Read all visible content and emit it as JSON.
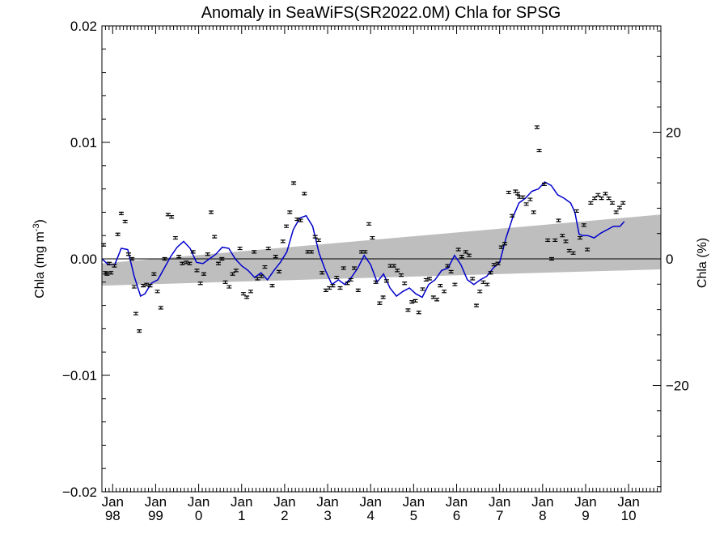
{
  "chart_data": {
    "type": "scatter",
    "title": "Anomaly in SeaWiFS(SR2022.0M) Chla for SPSG",
    "ylabel_left": "Chla (mg m",
    "ylabel_left_sup": "-3",
    "ylabel_left_end": ")",
    "ylabel_right": "Chla (%)",
    "x_range": [
      1997.75,
      2010.75
    ],
    "y_range": [
      -0.02,
      0.02
    ],
    "y_right_range": [
      -36.8,
      36.8
    ],
    "grid": false,
    "y_left_ticks": [
      {
        "value": 0.02,
        "label": "0.02"
      },
      {
        "value": 0.01,
        "label": "0.01"
      },
      {
        "value": 0.0,
        "label": "0.00"
      },
      {
        "value": -0.01,
        "label": "−0.01"
      },
      {
        "value": -0.02,
        "label": "−0.02"
      }
    ],
    "y_right_ticks": [
      {
        "value": 20,
        "label": "20"
      },
      {
        "value": 0,
        "label": "0"
      },
      {
        "value": -20,
        "label": "−20"
      }
    ],
    "x_ticks": [
      {
        "value": 1998,
        "top": "Jan",
        "bottom": "98"
      },
      {
        "value": 1999,
        "top": "Jan",
        "bottom": "99"
      },
      {
        "value": 2000,
        "top": "Jan",
        "bottom": "0"
      },
      {
        "value": 2001,
        "top": "Jan",
        "bottom": "1"
      },
      {
        "value": 2002,
        "top": "Jan",
        "bottom": "2"
      },
      {
        "value": 2003,
        "top": "Jan",
        "bottom": "3"
      },
      {
        "value": 2004,
        "top": "Jan",
        "bottom": "4"
      },
      {
        "value": 2005,
        "top": "Jan",
        "bottom": "5"
      },
      {
        "value": 2006,
        "top": "Jan",
        "bottom": "6"
      },
      {
        "value": 2007,
        "top": "Jan",
        "bottom": "7"
      },
      {
        "value": 2008,
        "top": "Jan",
        "bottom": "8"
      },
      {
        "value": 2009,
        "top": "Jan",
        "bottom": "9"
      },
      {
        "value": 2010,
        "top": "Jan",
        "bottom": "10"
      }
    ],
    "trend_band": {
      "color": "#bebebe",
      "x": [
        1997.75,
        2010.75
      ],
      "upper": [
        -0.0004,
        0.0038
      ],
      "lower": [
        -0.0023,
        -0.0009
      ]
    },
    "smoothed_series": {
      "color": "#0000cc",
      "points": [
        [
          1997.75,
          0.0
        ],
        [
          1997.9,
          -0.0005
        ],
        [
          1998.05,
          -0.0005
        ],
        [
          1998.2,
          0.0009
        ],
        [
          1998.35,
          0.0008
        ],
        [
          1998.5,
          -0.0015
        ],
        [
          1998.65,
          -0.0032
        ],
        [
          1998.75,
          -0.003
        ],
        [
          1998.9,
          -0.0021
        ],
        [
          1999.05,
          -0.0018
        ],
        [
          1999.2,
          -0.0008
        ],
        [
          1999.35,
          0.0002
        ],
        [
          1999.5,
          0.001
        ],
        [
          1999.65,
          0.0015
        ],
        [
          1999.8,
          0.0009
        ],
        [
          1999.95,
          -0.0003
        ],
        [
          2000.1,
          -0.0004
        ],
        [
          2000.25,
          0.0
        ],
        [
          2000.4,
          0.0004
        ],
        [
          2000.55,
          0.001
        ],
        [
          2000.7,
          0.0009
        ],
        [
          2000.85,
          0.0
        ],
        [
          2001.0,
          -0.0006
        ],
        [
          2001.15,
          -0.001
        ],
        [
          2001.3,
          -0.0016
        ],
        [
          2001.45,
          -0.0012
        ],
        [
          2001.6,
          -0.0018
        ],
        [
          2001.75,
          -0.001
        ],
        [
          2001.9,
          -0.0003
        ],
        [
          2002.05,
          0.0006
        ],
        [
          2002.2,
          0.0025
        ],
        [
          2002.35,
          0.0035
        ],
        [
          2002.5,
          0.0037
        ],
        [
          2002.65,
          0.0028
        ],
        [
          2002.8,
          0.0005
        ],
        [
          2002.95,
          -0.001
        ],
        [
          2003.1,
          -0.0022
        ],
        [
          2003.25,
          -0.0018
        ],
        [
          2003.4,
          -0.0022
        ],
        [
          2003.55,
          -0.0016
        ],
        [
          2003.7,
          -0.0008
        ],
        [
          2003.85,
          0.0003
        ],
        [
          2004.0,
          -0.0005
        ],
        [
          2004.15,
          -0.002
        ],
        [
          2004.3,
          -0.0013
        ],
        [
          2004.45,
          -0.0025
        ],
        [
          2004.6,
          -0.0032
        ],
        [
          2004.75,
          -0.0028
        ],
        [
          2004.9,
          -0.0025
        ],
        [
          2005.05,
          -0.003
        ],
        [
          2005.2,
          -0.0033
        ],
        [
          2005.35,
          -0.0022
        ],
        [
          2005.5,
          -0.0018
        ],
        [
          2005.65,
          -0.001
        ],
        [
          2005.8,
          -0.0008
        ],
        [
          2005.95,
          0.0003
        ],
        [
          2006.1,
          -0.0005
        ],
        [
          2006.25,
          -0.0018
        ],
        [
          2006.4,
          -0.0022
        ],
        [
          2006.55,
          -0.0018
        ],
        [
          2006.7,
          -0.0015
        ],
        [
          2006.85,
          -0.0008
        ],
        [
          2007.0,
          -0.0003
        ],
        [
          2007.15,
          0.0018
        ],
        [
          2007.3,
          0.0035
        ],
        [
          2007.45,
          0.0048
        ],
        [
          2007.6,
          0.0052
        ],
        [
          2007.75,
          0.0058
        ],
        [
          2007.9,
          0.006
        ],
        [
          2008.05,
          0.0066
        ],
        [
          2008.2,
          0.0063
        ],
        [
          2008.35,
          0.0055
        ],
        [
          2008.5,
          0.0052
        ],
        [
          2008.65,
          0.0048
        ],
        [
          2008.75,
          0.004
        ],
        [
          2008.85,
          0.0021
        ],
        [
          2008.95,
          0.002
        ],
        [
          2009.05,
          0.002
        ],
        [
          2009.2,
          0.0018
        ],
        [
          2009.35,
          0.0022
        ],
        [
          2009.5,
          0.0025
        ],
        [
          2009.65,
          0.0028
        ],
        [
          2009.8,
          0.0028
        ],
        [
          2009.9,
          0.0032
        ]
      ]
    },
    "monthly_points": [
      [
        1997.79,
        0.0012
      ],
      [
        1997.83,
        -0.0012
      ],
      [
        1997.87,
        -0.0013
      ],
      [
        1997.92,
        -0.0004
      ],
      [
        1997.96,
        -0.0012
      ],
      [
        1998.04,
        -0.0006
      ],
      [
        1998.12,
        0.0021
      ],
      [
        1998.2,
        0.0039
      ],
      [
        1998.29,
        0.0032
      ],
      [
        1998.37,
        0.0004
      ],
      [
        1998.45,
        0.0
      ],
      [
        1998.5,
        -0.0024
      ],
      [
        1998.54,
        -0.0047
      ],
      [
        1998.62,
        -0.0062
      ],
      [
        1998.71,
        -0.0023
      ],
      [
        1998.79,
        -0.0022
      ],
      [
        1998.87,
        -0.0023
      ],
      [
        1998.96,
        -0.0013
      ],
      [
        1999.04,
        -0.0028
      ],
      [
        1999.12,
        -0.0042
      ],
      [
        1999.21,
        0.0
      ],
      [
        1999.29,
        0.0038
      ],
      [
        1999.37,
        0.0036
      ],
      [
        1999.46,
        0.0018
      ],
      [
        1999.54,
        0.0002
      ],
      [
        1999.62,
        -0.0004
      ],
      [
        1999.71,
        -0.0003
      ],
      [
        1999.79,
        -0.0004
      ],
      [
        1999.87,
        0.0006
      ],
      [
        1999.96,
        -0.001
      ],
      [
        2000.04,
        -0.0021
      ],
      [
        2000.12,
        -0.0013
      ],
      [
        2000.21,
        0.0004
      ],
      [
        2000.29,
        0.004
      ],
      [
        2000.37,
        0.0019
      ],
      [
        2000.46,
        -0.0004
      ],
      [
        2000.54,
        0.0
      ],
      [
        2000.62,
        -0.002
      ],
      [
        2000.71,
        -0.0024
      ],
      [
        2000.79,
        -0.0013
      ],
      [
        2000.87,
        -0.001
      ],
      [
        2000.96,
        0.0009
      ],
      [
        2001.04,
        -0.003
      ],
      [
        2001.12,
        -0.0033
      ],
      [
        2001.21,
        -0.0028
      ],
      [
        2001.29,
        0.0006
      ],
      [
        2001.37,
        -0.0017
      ],
      [
        2001.46,
        -0.0015
      ],
      [
        2001.54,
        -0.0007
      ],
      [
        2001.62,
        0.0009
      ],
      [
        2001.71,
        -0.0023
      ],
      [
        2001.79,
        0.0002
      ],
      [
        2001.87,
        -0.0011
      ],
      [
        2001.96,
        0.0015
      ],
      [
        2002.04,
        0.0028
      ],
      [
        2002.12,
        0.004
      ],
      [
        2002.21,
        0.0065
      ],
      [
        2002.29,
        0.0034
      ],
      [
        2002.37,
        0.0033
      ],
      [
        2002.46,
        0.0056
      ],
      [
        2002.54,
        0.0006
      ],
      [
        2002.62,
        0.0006
      ],
      [
        2002.71,
        0.0019
      ],
      [
        2002.79,
        0.0016
      ],
      [
        2002.87,
        -0.0012
      ],
      [
        2002.96,
        -0.0027
      ],
      [
        2003.04,
        -0.0025
      ],
      [
        2003.12,
        -0.0023
      ],
      [
        2003.21,
        -0.0016
      ],
      [
        2003.29,
        -0.0025
      ],
      [
        2003.37,
        -0.0008
      ],
      [
        2003.46,
        -0.0021
      ],
      [
        2003.54,
        -0.0018
      ],
      [
        2003.62,
        -0.0008
      ],
      [
        2003.71,
        -0.0027
      ],
      [
        2003.79,
        0.0006
      ],
      [
        2003.87,
        0.0006
      ],
      [
        2003.96,
        0.003
      ],
      [
        2004.04,
        0.0018
      ],
      [
        2004.12,
        -0.002
      ],
      [
        2004.21,
        -0.0038
      ],
      [
        2004.29,
        -0.0033
      ],
      [
        2004.37,
        -0.0019
      ],
      [
        2004.46,
        -0.0006
      ],
      [
        2004.54,
        -0.0006
      ],
      [
        2004.62,
        -0.001
      ],
      [
        2004.71,
        -0.0014
      ],
      [
        2004.79,
        -0.0021
      ],
      [
        2004.87,
        -0.0044
      ],
      [
        2004.96,
        -0.0037
      ],
      [
        2005.04,
        -0.0036
      ],
      [
        2005.12,
        -0.0046
      ],
      [
        2005.21,
        -0.0026
      ],
      [
        2005.29,
        -0.0018
      ],
      [
        2005.37,
        -0.0017
      ],
      [
        2005.46,
        -0.0033
      ],
      [
        2005.54,
        -0.0035
      ],
      [
        2005.62,
        -0.0023
      ],
      [
        2005.71,
        -0.0028
      ],
      [
        2005.79,
        -0.0006
      ],
      [
        2005.87,
        -0.0011
      ],
      [
        2005.96,
        -0.0022
      ],
      [
        2006.04,
        0.0008
      ],
      [
        2006.12,
        0.0002
      ],
      [
        2006.21,
        0.0006
      ],
      [
        2006.29,
        0.0003
      ],
      [
        2006.37,
        -0.0017
      ],
      [
        2006.46,
        -0.004
      ],
      [
        2006.54,
        -0.0028
      ],
      [
        2006.62,
        -0.002
      ],
      [
        2006.71,
        -0.0022
      ],
      [
        2006.79,
        -0.0012
      ],
      [
        2006.87,
        -0.0005
      ],
      [
        2006.96,
        -0.0004
      ],
      [
        2007.04,
        0.001
      ],
      [
        2007.12,
        0.0013
      ],
      [
        2007.21,
        0.0057
      ],
      [
        2007.29,
        0.0037
      ],
      [
        2007.37,
        0.0058
      ],
      [
        2007.42,
        0.0056
      ],
      [
        2007.46,
        0.0053
      ],
      [
        2007.54,
        0.0053
      ],
      [
        2007.62,
        0.0047
      ],
      [
        2007.71,
        0.0051
      ],
      [
        2007.79,
        0.004
      ],
      [
        2007.87,
        0.0113
      ],
      [
        2007.92,
        0.0093
      ],
      [
        2008.04,
        0.0064
      ],
      [
        2008.12,
        0.0016
      ],
      [
        2008.21,
        0.0
      ],
      [
        2008.29,
        0.0016
      ],
      [
        2008.37,
        0.0033
      ],
      [
        2008.46,
        0.002
      ],
      [
        2008.54,
        0.0015
      ],
      [
        2008.62,
        0.0007
      ],
      [
        2008.71,
        0.0005
      ],
      [
        2008.79,
        0.0041
      ],
      [
        2008.87,
        0.0018
      ],
      [
        2008.96,
        0.0029
      ],
      [
        2009.04,
        0.0008
      ],
      [
        2009.12,
        0.0048
      ],
      [
        2009.21,
        0.0052
      ],
      [
        2009.29,
        0.0055
      ],
      [
        2009.37,
        0.0052
      ],
      [
        2009.46,
        0.0056
      ],
      [
        2009.54,
        0.0052
      ],
      [
        2009.62,
        0.0048
      ],
      [
        2009.71,
        0.004
      ],
      [
        2009.79,
        0.0044
      ],
      [
        2009.87,
        0.0048
      ]
    ]
  }
}
